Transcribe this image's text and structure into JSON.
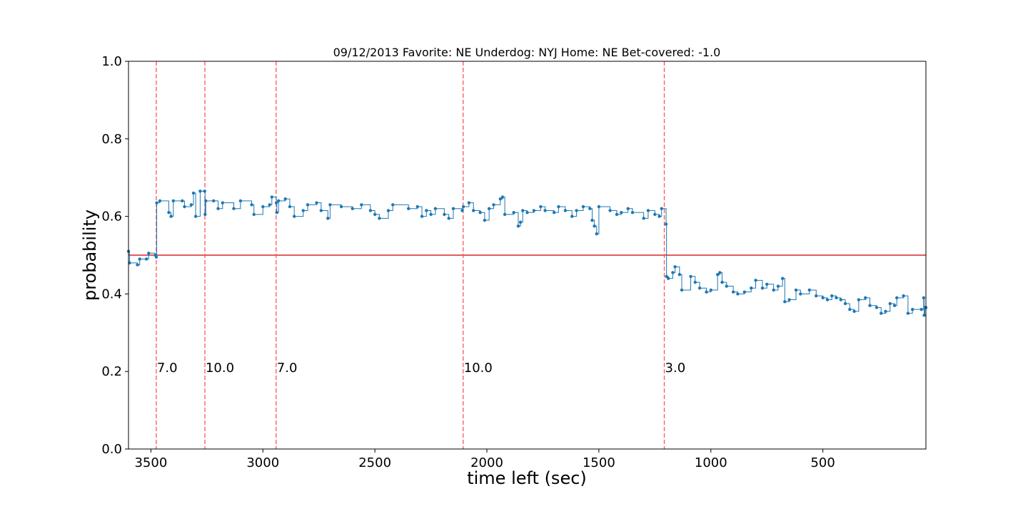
{
  "chart_data": {
    "type": "line",
    "title": "09/12/2013 Favorite: NE Underdog: NYJ Home: NE Bet-covered: -1.0",
    "xlabel": "time left (sec)",
    "ylabel": "probability",
    "xlim": [
      3600,
      40
    ],
    "ylim": [
      0,
      1
    ],
    "xticks": [
      3500,
      3000,
      2500,
      2000,
      1500,
      1000,
      500
    ],
    "yticks": [
      {
        "value": 0,
        "label": "0.0"
      },
      {
        "value": 0.2,
        "label": "0.2"
      },
      {
        "value": 0.4,
        "label": "0.4"
      },
      {
        "value": 0.6,
        "label": "0.6"
      },
      {
        "value": 0.8,
        "label": "0.8"
      },
      {
        "value": 1,
        "label": "1.0"
      }
    ],
    "color": "#1f77b4",
    "x": [
      3600,
      3595,
      3560,
      3550,
      3520,
      3510,
      3480,
      3476,
      3474,
      3460,
      3420,
      3410,
      3400,
      3360,
      3350,
      3320,
      3310,
      3300,
      3280,
      3260,
      3258,
      3255,
      3220,
      3200,
      3180,
      3130,
      3100,
      3050,
      3040,
      3000,
      2970,
      2960,
      2940,
      2938,
      2930,
      2900,
      2880,
      2860,
      2820,
      2800,
      2760,
      2740,
      2710,
      2700,
      2650,
      2600,
      2560,
      2520,
      2500,
      2480,
      2440,
      2420,
      2350,
      2310,
      2290,
      2270,
      2250,
      2230,
      2190,
      2170,
      2150,
      2110,
      2105,
      2080,
      2060,
      2030,
      2010,
      1990,
      1970,
      1940,
      1930,
      1920,
      1880,
      1860,
      1850,
      1840,
      1820,
      1790,
      1760,
      1740,
      1700,
      1680,
      1650,
      1620,
      1600,
      1570,
      1540,
      1530,
      1520,
      1510,
      1500,
      1450,
      1420,
      1400,
      1370,
      1350,
      1300,
      1280,
      1250,
      1230,
      1220,
      1200,
      1198,
      1190,
      1170,
      1160,
      1140,
      1130,
      1090,
      1070,
      1050,
      1020,
      1000,
      970,
      960,
      950,
      930,
      900,
      880,
      850,
      820,
      800,
      770,
      750,
      720,
      700,
      680,
      670,
      650,
      620,
      600,
      560,
      530,
      500,
      480,
      460,
      440,
      420,
      400,
      380,
      360,
      340,
      310,
      290,
      260,
      240,
      220,
      200,
      180,
      170,
      140,
      120,
      100,
      60,
      50,
      48,
      45,
      40
    ],
    "values": [
      0.51,
      0.48,
      0.475,
      0.49,
      0.49,
      0.505,
      0.5,
      0.495,
      0.635,
      0.64,
      0.61,
      0.6,
      0.64,
      0.64,
      0.625,
      0.63,
      0.66,
      0.6,
      0.665,
      0.665,
      0.605,
      0.64,
      0.64,
      0.62,
      0.635,
      0.62,
      0.64,
      0.63,
      0.605,
      0.625,
      0.63,
      0.65,
      0.635,
      0.61,
      0.64,
      0.645,
      0.625,
      0.6,
      0.615,
      0.63,
      0.635,
      0.615,
      0.595,
      0.63,
      0.625,
      0.62,
      0.63,
      0.615,
      0.605,
      0.595,
      0.615,
      0.63,
      0.62,
      0.625,
      0.6,
      0.615,
      0.605,
      0.62,
      0.605,
      0.595,
      0.62,
      0.615,
      0.625,
      0.635,
      0.615,
      0.61,
      0.59,
      0.62,
      0.63,
      0.645,
      0.65,
      0.605,
      0.61,
      0.575,
      0.585,
      0.615,
      0.61,
      0.615,
      0.625,
      0.615,
      0.61,
      0.625,
      0.615,
      0.6,
      0.615,
      0.625,
      0.62,
      0.59,
      0.575,
      0.555,
      0.625,
      0.615,
      0.605,
      0.61,
      0.62,
      0.61,
      0.595,
      0.615,
      0.605,
      0.6,
      0.62,
      0.58,
      0.445,
      0.44,
      0.455,
      0.47,
      0.45,
      0.41,
      0.445,
      0.43,
      0.415,
      0.405,
      0.41,
      0.45,
      0.455,
      0.43,
      0.42,
      0.405,
      0.4,
      0.405,
      0.415,
      0.435,
      0.415,
      0.425,
      0.41,
      0.42,
      0.44,
      0.38,
      0.385,
      0.41,
      0.4,
      0.41,
      0.395,
      0.39,
      0.385,
      0.395,
      0.39,
      0.385,
      0.375,
      0.36,
      0.355,
      0.385,
      0.39,
      0.37,
      0.365,
      0.35,
      0.355,
      0.375,
      0.37,
      0.39,
      0.395,
      0.35,
      0.36,
      0.36,
      0.39,
      0.345,
      0.365,
      0.365
    ],
    "hline": {
      "y": 0.5,
      "color": "#d62728"
    },
    "vlines": [
      {
        "x": 3476,
        "label": "7.0"
      },
      {
        "x": 3259,
        "label": "10.0"
      },
      {
        "x": 2941,
        "label": "7.0"
      },
      {
        "x": 2106,
        "label": "10.0"
      },
      {
        "x": 1208,
        "label": "3.0"
      }
    ],
    "vline_color": "#ff5555"
  }
}
